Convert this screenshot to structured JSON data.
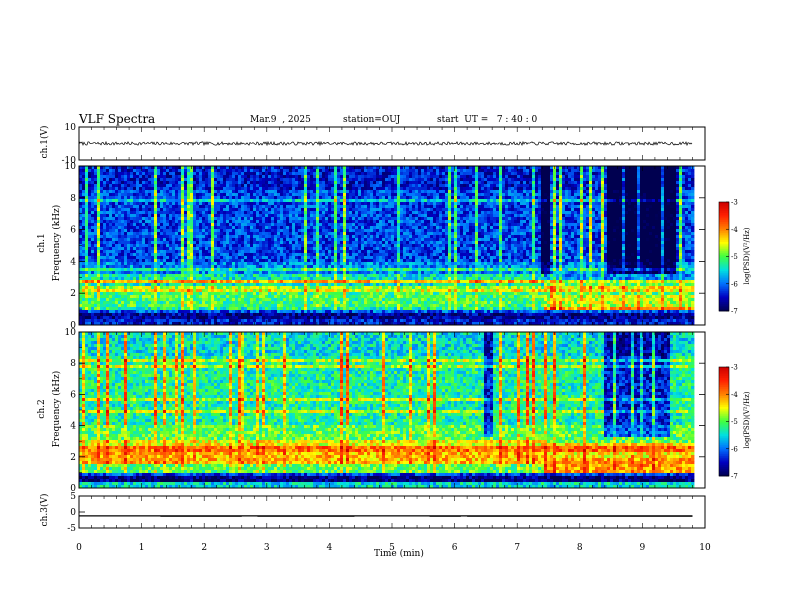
{
  "header": {
    "title": "VLF Spectra",
    "date": "Mar.9  , 2025",
    "station": "station=OUJ",
    "start": "start  UT =   7 : 40 : 0"
  },
  "panels": {
    "ch1_wave": {
      "ylabel": "ch.1(V)",
      "ticks": [
        "10",
        "-10"
      ]
    },
    "ch1_spec": {
      "ylabel_top": "ch.1",
      "ylabel": "Frequency  (kHz)"
    },
    "ch2_spec": {
      "ylabel_top": "ch.2",
      "ylabel": "Frequency  (kHz)"
    },
    "ch3_wave": {
      "ylabel": "ch.3(V)",
      "ticks": [
        "5",
        "0",
        "-5"
      ]
    }
  },
  "colorbar": {
    "label": "log(PSD)(V²/Hz)",
    "ticks": [
      "-3",
      "-4",
      "-5",
      "-6",
      "-7"
    ],
    "colors": [
      "#cc0000",
      "#ff2000",
      "#ff8000",
      "#ffff00",
      "#40ff40",
      "#00e0e0",
      "#0070ff",
      "#0000c0",
      "#000050"
    ]
  },
  "chart_data": {
    "type": "heatmap",
    "xlabel": "Time  (min)",
    "xlim": [
      0,
      10
    ],
    "x_ticks": [
      0,
      1,
      2,
      3,
      4,
      5,
      6,
      7,
      8,
      9,
      10
    ],
    "y_ticks_freq": [
      0,
      2,
      4,
      6,
      8,
      10
    ],
    "ylim_freq_khz": [
      0,
      10
    ],
    "data_end_min": 9.8,
    "zlim_log_psd": [
      -7,
      -3
    ],
    "series": [
      {
        "name": "ch.1",
        "kind": "spectrogram",
        "base_band_khz": [
          1.2,
          3.2
        ],
        "base_band_level": -5.2,
        "shifted_band_from_min": 7.4,
        "shifted_band_khz": [
          1.0,
          2.6
        ],
        "shifted_band_level": -4.8,
        "background_level": -6.2,
        "low_freq_level": -6.7,
        "quiet_intervals_min": [
          [
            7.35,
            7.55
          ],
          [
            8.4,
            9.5
          ]
        ]
      },
      {
        "name": "ch.2",
        "kind": "spectrogram",
        "base_band_khz": [
          1.5,
          3.0
        ],
        "base_band_level": -4.3,
        "shifted_band_from_min": 7.4,
        "shifted_band_khz": [
          1.0,
          2.8
        ],
        "shifted_band_level": -4.2,
        "background_level": -5.3,
        "low_freq_level": -6.8,
        "quiet_intervals_min": [
          [
            6.45,
            6.6
          ],
          [
            8.35,
            9.4
          ]
        ]
      },
      {
        "name": "ch.1(V)",
        "kind": "waveform",
        "ylim": [
          -10,
          10
        ],
        "mean_level": 0,
        "noise_amplitude": 1.0
      },
      {
        "name": "ch.3(V)",
        "kind": "waveform",
        "ylim": [
          -5,
          5
        ],
        "mean_level": -1.2,
        "high_level": -1.2,
        "low_level": -1.5,
        "low_intervals_min": [
          [
            1.3,
            2.6
          ],
          [
            2.85,
            4.4
          ],
          [
            5.6,
            6.1
          ],
          [
            6.2,
            9.8
          ]
        ]
      }
    ]
  }
}
